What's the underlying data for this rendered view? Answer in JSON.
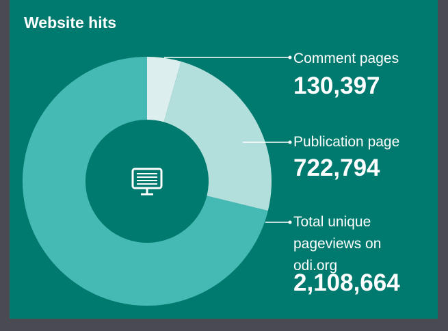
{
  "chart_data": {
    "type": "donut",
    "title": "Website hits",
    "categories": [
      "Comment pages",
      "Publication page",
      "Total unique pageviews on odi.org"
    ],
    "values": [
      130397,
      722794,
      2108664
    ],
    "value_labels": [
      "130,397",
      "722,794",
      "2,108,664"
    ],
    "colors": [
      "#dcefee",
      "#b2dedb",
      "#45bab5"
    ]
  }
}
